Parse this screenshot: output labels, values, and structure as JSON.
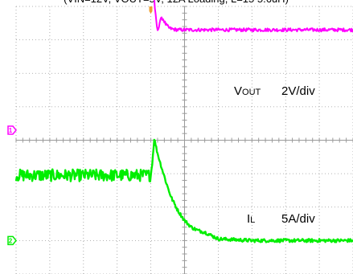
{
  "chart_data": {
    "type": "line",
    "title": "(V  =12V, V    =5V, 12A Loading, L=15 5.6uH)",
    "title_visible": "(V IN=12V, V OUT=5V, 12A Loading, L=15 5.6uH)",
    "grid": true,
    "x_divisions": 10,
    "y_divisions": 8,
    "colors": {
      "vout": "#ff00ff",
      "il": "#00ee00",
      "trigger": "#f0a030",
      "grid": "#9a9a9a"
    },
    "series": [
      {
        "name": "VOUT",
        "label_main": "V",
        "label_sub": "OUT",
        "scale": "2V/div",
        "marker": "1",
        "x": [
          0,
          4.0,
          4.05,
          4.12,
          4.2,
          4.28,
          4.35,
          4.45,
          4.55,
          4.65,
          4.8,
          5.0,
          5.5,
          6.5,
          8.0,
          10.0
        ],
        "y": [
          6.2,
          6.2,
          4.9,
          3.6,
          2.95,
          3.3,
          3.35,
          3.15,
          3.05,
          3.02,
          3.0,
          3.0,
          3.0,
          3.0,
          3.0,
          3.0
        ]
      },
      {
        "name": "IL",
        "label_main": "I",
        "label_sub": "L",
        "scale": "5A/div",
        "marker": "2",
        "x": [
          0,
          4.0,
          4.05,
          4.1,
          4.2,
          4.3,
          4.45,
          4.6,
          4.8,
          5.0,
          5.2,
          5.4,
          5.6,
          5.8,
          6.0,
          7.0,
          8.0,
          10.0
        ],
        "y": [
          1.95,
          1.95,
          2.4,
          3.05,
          2.6,
          2.25,
          1.75,
          1.3,
          0.9,
          0.6,
          0.4,
          0.3,
          0.25,
          0.15,
          0.05,
          0.0,
          0.0,
          0.0
        ]
      }
    ]
  }
}
